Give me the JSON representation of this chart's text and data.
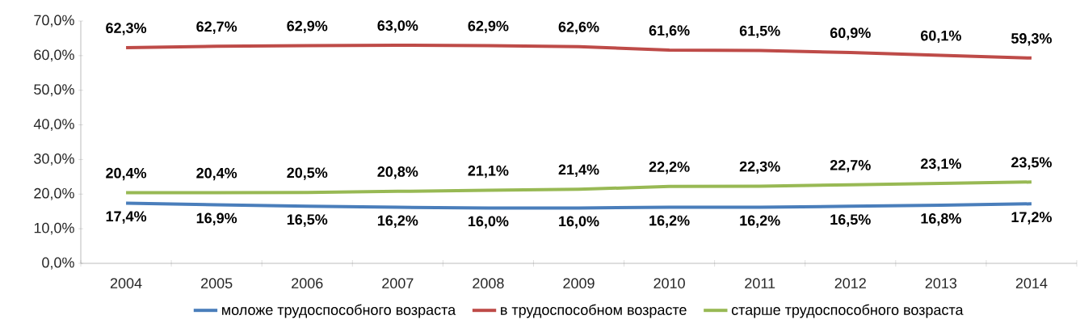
{
  "chart_data": {
    "type": "line",
    "categories": [
      "2004",
      "2005",
      "2006",
      "2007",
      "2008",
      "2009",
      "2010",
      "2011",
      "2012",
      "2013",
      "2014"
    ],
    "series": [
      {
        "name": "моложе трудоспособного возраста",
        "color": "#4a7ebb",
        "values": [
          17.4,
          16.9,
          16.5,
          16.2,
          16.0,
          16.0,
          16.2,
          16.2,
          16.5,
          16.8,
          17.2
        ],
        "value_labels": [
          "17,4%",
          "16,9%",
          "16,5%",
          "16,2%",
          "16,0%",
          "16,0%",
          "16,2%",
          "16,2%",
          "16,5%",
          "16,8%",
          "17,2%"
        ]
      },
      {
        "name": "в трудоспособном возрасте",
        "color": "#be4b48",
        "values": [
          62.3,
          62.7,
          62.9,
          63.0,
          62.9,
          62.6,
          61.6,
          61.5,
          60.9,
          60.1,
          59.3
        ],
        "value_labels": [
          "62,3%",
          "62,7%",
          "62,9%",
          "63,0%",
          "62,9%",
          "62,6%",
          "61,6%",
          "61,5%",
          "60,9%",
          "60,1%",
          "59,3%"
        ]
      },
      {
        "name": "старше трудоспособного возраста",
        "color": "#98b954",
        "values": [
          20.4,
          20.4,
          20.5,
          20.8,
          21.1,
          21.4,
          22.2,
          22.3,
          22.7,
          23.1,
          23.5
        ],
        "value_labels": [
          "20,4%",
          "20,4%",
          "20,5%",
          "20,8%",
          "21,1%",
          "21,4%",
          "22,2%",
          "22,3%",
          "22,7%",
          "23,1%",
          "23,5%"
        ]
      }
    ],
    "ylim": [
      0,
      70
    ],
    "yticks": [
      {
        "value": 0,
        "label": "0,0%"
      },
      {
        "value": 10,
        "label": "10,0%"
      },
      {
        "value": 20,
        "label": "20,0%"
      },
      {
        "value": 30,
        "label": "30,0%"
      },
      {
        "value": 40,
        "label": "40,0%"
      },
      {
        "value": 50,
        "label": "50,0%"
      },
      {
        "value": 60,
        "label": "60,0%"
      },
      {
        "value": 70,
        "label": "70,0%"
      }
    ],
    "legend": "bottom",
    "marker": "none",
    "line_style": "solid"
  }
}
